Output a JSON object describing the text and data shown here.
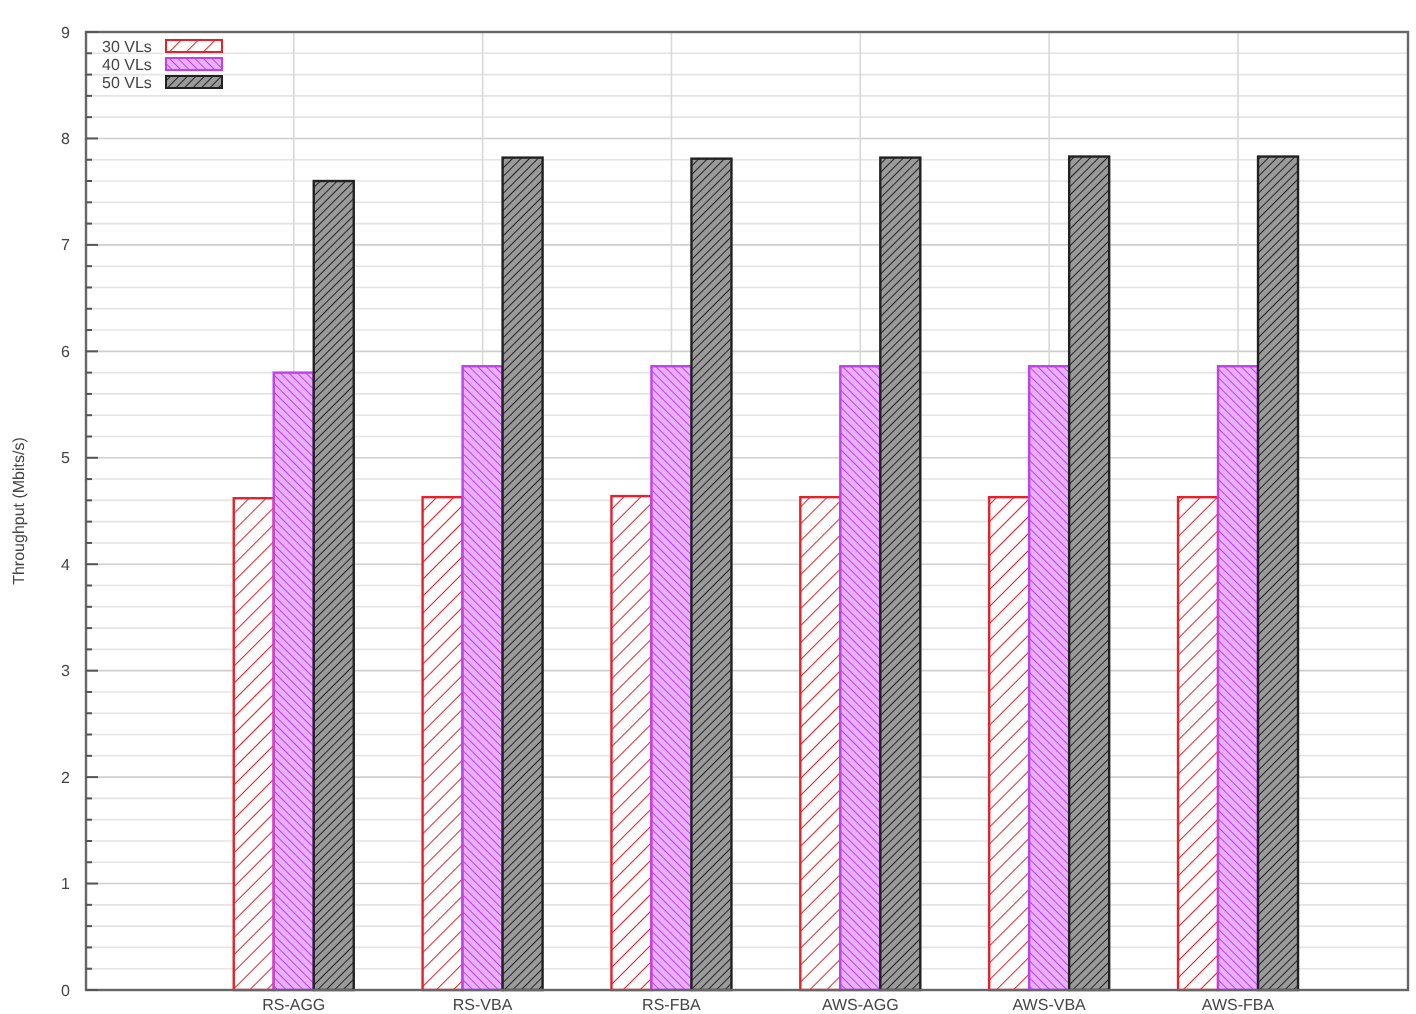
{
  "chart_data": {
    "type": "bar",
    "ylabel": "Throughput (Mbits/s)",
    "categories": [
      "RS-AGG",
      "RS-VBA",
      "RS-FBA",
      "AWS-AGG",
      "AWS-VBA",
      "AWS-FBA"
    ],
    "series": [
      {
        "name": "30 VLs",
        "color": "#e8202a",
        "values": [
          4.62,
          4.63,
          4.64,
          4.63,
          4.63,
          4.63
        ]
      },
      {
        "name": "40 VLs",
        "color": "#c040f0",
        "values": [
          5.8,
          5.86,
          5.86,
          5.86,
          5.86,
          5.86
        ]
      },
      {
        "name": "50 VLs",
        "color": "#222222",
        "values": [
          7.6,
          7.82,
          7.81,
          7.82,
          7.83,
          7.83
        ]
      }
    ],
    "ylim": [
      0,
      9
    ],
    "yticks": [
      0,
      {
        "value": 0.2,
        "label": null
      },
      {
        "value": 0.4,
        "label": null
      },
      {
        "value": 0.6,
        "label": null
      },
      {
        "value": 0.8,
        "label": null
      },
      1,
      {
        "value": 1.2,
        "label": null
      },
      {
        "value": 1.4,
        "label": null
      },
      {
        "value": 1.6,
        "label": null
      },
      {
        "value": 1.8,
        "label": null
      },
      2,
      {
        "value": 2.2,
        "label": null
      },
      {
        "value": 2.4,
        "label": null
      },
      {
        "value": 2.6,
        "label": null
      },
      {
        "value": 2.8,
        "label": null
      },
      3,
      {
        "value": 3.2,
        "label": null
      },
      {
        "value": 3.4,
        "label": null
      },
      {
        "value": 3.6,
        "label": null
      },
      {
        "value": 3.8,
        "label": null
      },
      4,
      {
        "value": 4.2,
        "label": null
      },
      {
        "value": 4.4,
        "label": null
      },
      {
        "value": 4.6,
        "label": null
      },
      {
        "value": 4.8,
        "label": null
      },
      5,
      {
        "value": 5.2,
        "label": null
      },
      {
        "value": 5.4,
        "label": null
      },
      {
        "value": 5.6,
        "label": null
      },
      {
        "value": 5.8,
        "label": null
      },
      6,
      {
        "value": 6.2,
        "label": null
      },
      {
        "value": 6.4,
        "label": null
      },
      {
        "value": 6.6,
        "label": null
      },
      {
        "value": 6.8,
        "label": null
      },
      7,
      {
        "value": 7.2,
        "label": null
      },
      {
        "value": 7.4,
        "label": null
      },
      {
        "value": 7.6,
        "label": null
      },
      {
        "value": 7.8,
        "label": null
      },
      8,
      {
        "value": 8.2,
        "label": null
      },
      {
        "value": 8.4,
        "label": null
      },
      {
        "value": 8.6,
        "label": null
      },
      {
        "value": 8.8,
        "label": null
      },
      9
    ],
    "grid": true,
    "legend": "top left"
  }
}
